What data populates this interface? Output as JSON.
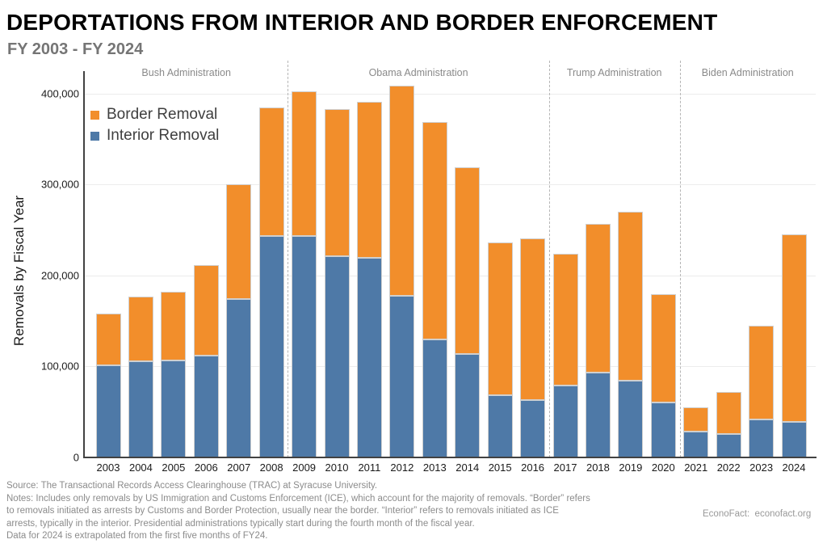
{
  "title": "DEPORTATIONS FROM INTERIOR AND BORDER ENFORCEMENT",
  "subtitle": "FY 2003 - FY 2024",
  "ylabel": "Removals by Fiscal Year",
  "legend": [
    {
      "label": "Border Removal",
      "color": "#F28E2B"
    },
    {
      "label": "Interior Removal",
      "color": "#4E79A7"
    }
  ],
  "chart_data": {
    "type": "bar",
    "stacked": true,
    "title": "DEPORTATIONS FROM INTERIOR AND BORDER ENFORCEMENT",
    "subtitle": "FY 2003 - FY 2024",
    "xlabel": "",
    "ylabel": "Removals by Fiscal Year",
    "categories": [
      "2003",
      "2004",
      "2005",
      "2006",
      "2007",
      "2008",
      "2009",
      "2010",
      "2011",
      "2012",
      "2013",
      "2014",
      "2015",
      "2016",
      "2017",
      "2018",
      "2019",
      "2020",
      "2021",
      "2022",
      "2023",
      "2024"
    ],
    "series": [
      {
        "name": "Interior Removal",
        "color": "#4E79A7",
        "values": [
          101000,
          106000,
          107000,
          112000,
          174000,
          243000,
          243000,
          221000,
          219000,
          178000,
          130000,
          114000,
          68000,
          63000,
          79000,
          93000,
          84000,
          60000,
          28000,
          26000,
          42000,
          39000
        ]
      },
      {
        "name": "Border Removal",
        "color": "#F28E2B",
        "values": [
          57000,
          71000,
          75000,
          99000,
          126000,
          142000,
          159000,
          162000,
          172000,
          231000,
          239000,
          205000,
          168000,
          178000,
          145000,
          164000,
          186000,
          119000,
          27000,
          46000,
          103000,
          206000
        ]
      }
    ],
    "totals": [
      158000,
      177000,
      182000,
      211000,
      300000,
      385000,
      402000,
      383000,
      391000,
      409000,
      369000,
      319000,
      236000,
      241000,
      224000,
      257000,
      270000,
      179000,
      55000,
      72000,
      145000,
      245000
    ],
    "ylim": [
      0,
      423000
    ],
    "yticks": [
      0,
      100000,
      200000,
      300000,
      400000
    ],
    "ytick_labels": [
      "0",
      "100,000",
      "200,000",
      "300,000",
      "400,000"
    ],
    "grid": "horizontal-light",
    "legend_position": "top-left-inside",
    "annotations": {
      "administrations": [
        {
          "label": "Bush Administration",
          "first_year": "2003",
          "last_year": "2008"
        },
        {
          "label": "Obama Administration",
          "first_year": "2009",
          "last_year": "2016"
        },
        {
          "label": "Trump Administration",
          "first_year": "2017",
          "last_year": "2020"
        },
        {
          "label": "Biden Administration",
          "first_year": "2021",
          "last_year": "2024"
        }
      ],
      "dividers_after": [
        "2008",
        "2016",
        "2020"
      ]
    }
  },
  "footer": {
    "lines": [
      "Source: The Transactional Records Access Clearinghouse (TRAC) at Syracuse University.",
      "Notes: Includes only removals by US Immigration and Customs Enforcement (ICE), which account for the majority of removals. “Border” refers",
      "to removals initiated as arrests by Customs and Border Protection, usually near the border. “Interior” refers to removals initiated as ICE",
      "arrests, typically in the interior. Presidential administrations typically start during the fourth month of the fiscal year.",
      "Data for 2024 is extrapolated from the first five months of FY24."
    ],
    "branding": "EconoFact:  econofact.org"
  },
  "colors": {
    "border_removal": "#F28E2B",
    "interior_removal": "#4E79A7",
    "bar_outline": "#cfcfcf",
    "axis": "#424242",
    "gridline": "#ececec",
    "divider": "#b5b5b5",
    "admin_label": "#8a8a8a",
    "subtitle": "#757575",
    "footer": "#8b8b8b"
  }
}
